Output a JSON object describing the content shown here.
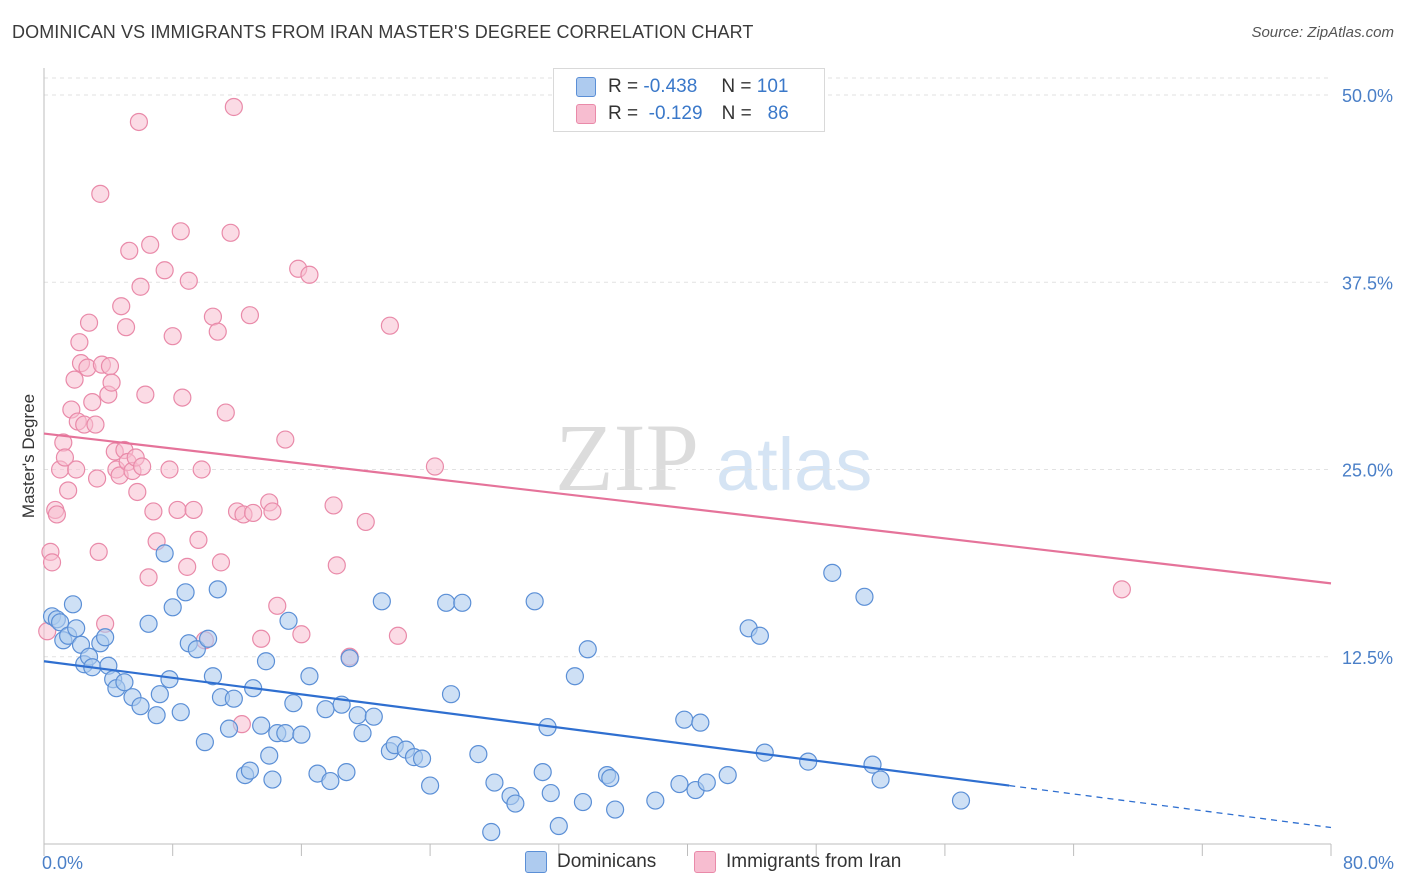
{
  "title": "DOMINICAN VS IMMIGRANTS FROM IRAN MASTER'S DEGREE CORRELATION CHART",
  "source": "Source: ZipAtlas.com",
  "watermark": {
    "zip": "ZIP",
    "atlas": "atlas"
  },
  "legend": {
    "row1": {
      "r_label": "R =",
      "r_value": "-0.438",
      "n_label": "N =",
      "n_value": "101"
    },
    "row2": {
      "r_label": "R =",
      "r_value": "-0.129",
      "n_label": "N =",
      "n_value": "86"
    }
  },
  "bottom_legend": {
    "series1": "Dominicans",
    "series2": "Immigrants from Iran"
  },
  "colors": {
    "blue_fill": "#aecbef",
    "blue_stroke": "#5b8fd6",
    "blue_line": "#2f6fd0",
    "pink_fill": "#f7bdd0",
    "pink_stroke": "#e98aa9",
    "pink_line": "#e5739a"
  },
  "chart_data": {
    "type": "scatter",
    "title": "DOMINICAN VS IMMIGRANTS FROM IRAN MASTER'S DEGREE CORRELATION CHART",
    "ylabel": "Master's Degree",
    "xlabel": "",
    "xlim": [
      0,
      80
    ],
    "ylim": [
      0,
      50
    ],
    "x_tick_labels": [
      "0.0%",
      "80.0%"
    ],
    "y_ticks": [
      12.5,
      25.0,
      37.5,
      50.0
    ],
    "y_tick_labels": [
      "12.5%",
      "25.0%",
      "37.5%",
      "50.0%"
    ],
    "grid": true,
    "series": [
      {
        "name": "Dominicans",
        "R": -0.438,
        "N": 101,
        "trend": {
          "x0": 0,
          "y0": 12.2,
          "x1": 60,
          "y1": 3.9,
          "dash_to_x": 80,
          "dash_to_y": 1.1
        },
        "points": [
          [
            0.5,
            15.2
          ],
          [
            0.8,
            15.0
          ],
          [
            1.0,
            14.8
          ],
          [
            1.2,
            13.6
          ],
          [
            1.5,
            13.9
          ],
          [
            1.8,
            16.0
          ],
          [
            2.0,
            14.4
          ],
          [
            2.3,
            13.3
          ],
          [
            2.5,
            12.0
          ],
          [
            2.8,
            12.5
          ],
          [
            3.0,
            11.8
          ],
          [
            3.5,
            13.4
          ],
          [
            3.8,
            13.8
          ],
          [
            4.0,
            11.9
          ],
          [
            4.3,
            11.0
          ],
          [
            4.5,
            10.4
          ],
          [
            5.0,
            10.8
          ],
          [
            5.5,
            9.8
          ],
          [
            6.0,
            9.2
          ],
          [
            6.5,
            14.7
          ],
          [
            7.0,
            8.6
          ],
          [
            7.2,
            10.0
          ],
          [
            7.5,
            19.4
          ],
          [
            7.8,
            11.0
          ],
          [
            8.0,
            15.8
          ],
          [
            8.5,
            8.8
          ],
          [
            8.8,
            16.8
          ],
          [
            9.0,
            13.4
          ],
          [
            9.5,
            13.0
          ],
          [
            10.0,
            6.8
          ],
          [
            10.2,
            13.7
          ],
          [
            10.5,
            11.2
          ],
          [
            10.8,
            17.0
          ],
          [
            11.0,
            9.8
          ],
          [
            11.5,
            7.7
          ],
          [
            11.8,
            9.7
          ],
          [
            12.5,
            4.6
          ],
          [
            12.8,
            4.9
          ],
          [
            13.0,
            10.4
          ],
          [
            13.5,
            7.9
          ],
          [
            13.8,
            12.2
          ],
          [
            14.0,
            5.9
          ],
          [
            14.2,
            4.3
          ],
          [
            14.5,
            7.4
          ],
          [
            15.0,
            7.4
          ],
          [
            15.2,
            14.9
          ],
          [
            15.5,
            9.4
          ],
          [
            16.0,
            7.3
          ],
          [
            16.5,
            11.2
          ],
          [
            17.0,
            4.7
          ],
          [
            17.5,
            9.0
          ],
          [
            17.8,
            4.2
          ],
          [
            18.5,
            9.3
          ],
          [
            18.8,
            4.8
          ],
          [
            19.0,
            12.4
          ],
          [
            19.5,
            8.6
          ],
          [
            19.8,
            7.4
          ],
          [
            20.5,
            8.5
          ],
          [
            21.0,
            16.2
          ],
          [
            21.5,
            6.2
          ],
          [
            21.8,
            6.6
          ],
          [
            22.5,
            6.3
          ],
          [
            23.0,
            5.8
          ],
          [
            23.5,
            5.7
          ],
          [
            24.0,
            3.9
          ],
          [
            25.0,
            16.1
          ],
          [
            25.3,
            10.0
          ],
          [
            26.0,
            16.1
          ],
          [
            27.0,
            6.0
          ],
          [
            27.8,
            0.8
          ],
          [
            28.0,
            4.1
          ],
          [
            29.0,
            3.2
          ],
          [
            29.3,
            2.7
          ],
          [
            30.5,
            16.2
          ],
          [
            31.0,
            4.8
          ],
          [
            31.3,
            7.8
          ],
          [
            31.5,
            3.4
          ],
          [
            32.0,
            1.2
          ],
          [
            33.0,
            11.2
          ],
          [
            33.5,
            2.8
          ],
          [
            33.8,
            13.0
          ],
          [
            35.0,
            4.6
          ],
          [
            35.2,
            4.4
          ],
          [
            35.5,
            2.3
          ],
          [
            38.0,
            2.9
          ],
          [
            39.5,
            4.0
          ],
          [
            39.8,
            8.3
          ],
          [
            40.5,
            3.6
          ],
          [
            40.8,
            8.1
          ],
          [
            41.2,
            4.1
          ],
          [
            42.5,
            4.6
          ],
          [
            43.8,
            14.4
          ],
          [
            44.5,
            13.9
          ],
          [
            44.8,
            6.1
          ],
          [
            47.5,
            5.5
          ],
          [
            49.0,
            18.1
          ],
          [
            51.0,
            16.5
          ],
          [
            51.5,
            5.3
          ],
          [
            52.0,
            4.3
          ],
          [
            57.0,
            2.9
          ]
        ]
      },
      {
        "name": "Immigrants from Iran",
        "R": -0.129,
        "N": 86,
        "trend": {
          "x0": 0,
          "y0": 27.4,
          "x1": 80,
          "y1": 17.4
        },
        "points": [
          [
            0.2,
            14.2
          ],
          [
            0.4,
            19.5
          ],
          [
            0.5,
            18.8
          ],
          [
            0.7,
            22.3
          ],
          [
            0.8,
            22.0
          ],
          [
            1.0,
            25.0
          ],
          [
            1.2,
            26.8
          ],
          [
            1.3,
            25.8
          ],
          [
            1.5,
            23.6
          ],
          [
            1.7,
            29.0
          ],
          [
            1.9,
            31.0
          ],
          [
            2.0,
            25.0
          ],
          [
            2.1,
            28.2
          ],
          [
            2.2,
            33.5
          ],
          [
            2.3,
            32.1
          ],
          [
            2.5,
            28.0
          ],
          [
            2.7,
            31.8
          ],
          [
            2.8,
            34.8
          ],
          [
            3.0,
            29.5
          ],
          [
            3.2,
            28.0
          ],
          [
            3.3,
            24.4
          ],
          [
            3.4,
            19.5
          ],
          [
            3.5,
            43.4
          ],
          [
            3.6,
            32.0
          ],
          [
            3.8,
            14.7
          ],
          [
            4.0,
            30.0
          ],
          [
            4.1,
            31.9
          ],
          [
            4.2,
            30.8
          ],
          [
            4.4,
            26.2
          ],
          [
            4.5,
            25.0
          ],
          [
            4.7,
            24.6
          ],
          [
            4.8,
            35.9
          ],
          [
            5.0,
            26.3
          ],
          [
            5.1,
            34.5
          ],
          [
            5.2,
            25.5
          ],
          [
            5.3,
            39.6
          ],
          [
            5.5,
            24.9
          ],
          [
            5.7,
            25.8
          ],
          [
            5.8,
            23.5
          ],
          [
            5.9,
            48.2
          ],
          [
            6.0,
            37.2
          ],
          [
            6.1,
            25.2
          ],
          [
            6.3,
            30.0
          ],
          [
            6.5,
            17.8
          ],
          [
            6.6,
            40.0
          ],
          [
            6.8,
            22.2
          ],
          [
            7.0,
            20.2
          ],
          [
            7.5,
            38.3
          ],
          [
            7.8,
            25.0
          ],
          [
            8.0,
            33.9
          ],
          [
            8.3,
            22.3
          ],
          [
            8.5,
            40.9
          ],
          [
            8.6,
            29.8
          ],
          [
            8.9,
            18.5
          ],
          [
            9.0,
            37.6
          ],
          [
            9.3,
            22.3
          ],
          [
            9.6,
            20.3
          ],
          [
            9.8,
            25.0
          ],
          [
            10.0,
            13.6
          ],
          [
            10.5,
            35.2
          ],
          [
            10.8,
            34.2
          ],
          [
            11.0,
            18.8
          ],
          [
            11.3,
            28.8
          ],
          [
            11.6,
            40.8
          ],
          [
            11.8,
            49.2
          ],
          [
            12.0,
            22.2
          ],
          [
            12.3,
            8.0
          ],
          [
            12.4,
            22.0
          ],
          [
            12.8,
            35.3
          ],
          [
            13.0,
            22.1
          ],
          [
            13.5,
            13.7
          ],
          [
            14.0,
            22.8
          ],
          [
            14.2,
            22.2
          ],
          [
            14.5,
            15.9
          ],
          [
            15.0,
            27.0
          ],
          [
            15.8,
            38.4
          ],
          [
            16.0,
            14.0
          ],
          [
            16.5,
            38.0
          ],
          [
            18.0,
            22.6
          ],
          [
            18.2,
            18.6
          ],
          [
            19.0,
            12.5
          ],
          [
            20.0,
            21.5
          ],
          [
            21.5,
            34.6
          ],
          [
            22.0,
            13.9
          ],
          [
            24.3,
            25.2
          ],
          [
            67.0,
            17.0
          ]
        ]
      }
    ]
  }
}
